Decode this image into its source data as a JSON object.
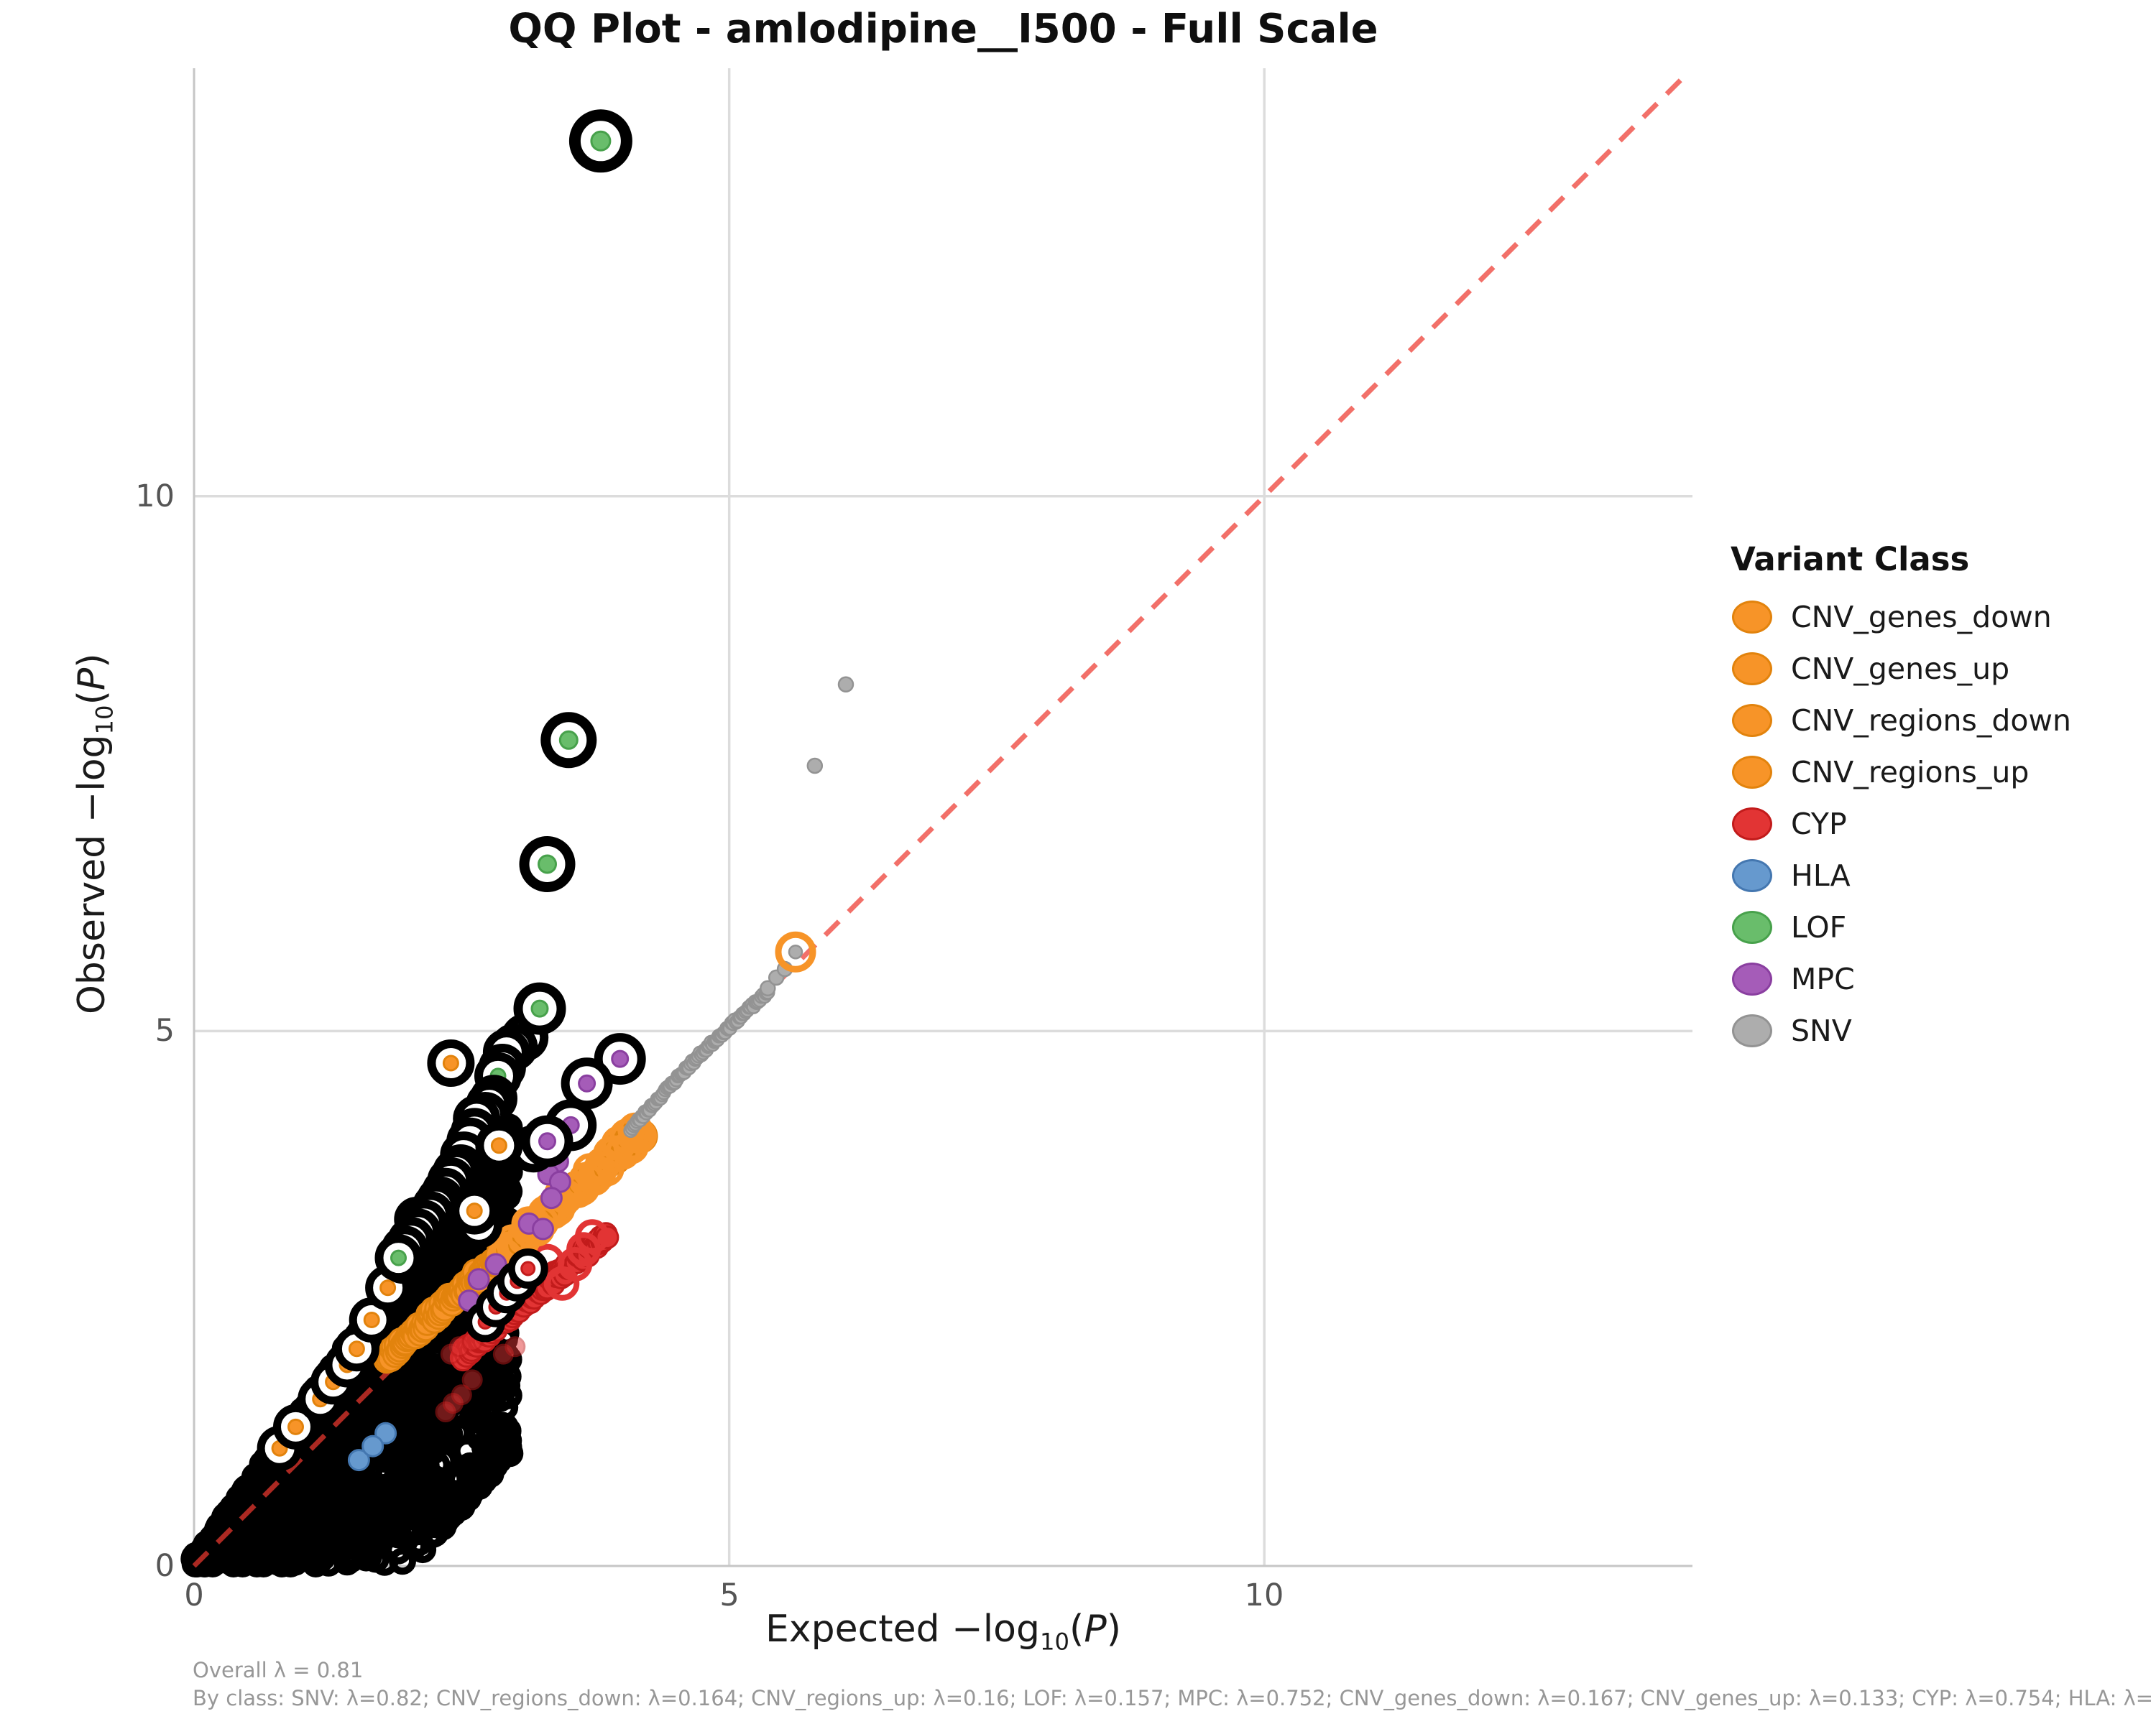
{
  "title": "QQ Plot - amlodipine__I500 - Full Scale",
  "caption": {
    "line1": "Overall λ = 0.81",
    "line2": "By class: SNV: λ=0.82; CNV_regions_down: λ=0.164; CNV_regions_up: λ=0.16; LOF: λ=0.157; MPC: λ=0.752; CNV_genes_down: λ=0.167; CNV_genes_up: λ=0.133; CYP: λ=0.754; HLA: λ="
  },
  "legend": {
    "title": "Variant Class",
    "items": [
      {
        "label": "CNV_genes_down",
        "color": "#F79428",
        "edge": "#E2830D"
      },
      {
        "label": "CNV_genes_up",
        "color": "#F79428",
        "edge": "#E2830D"
      },
      {
        "label": "CNV_regions_down",
        "color": "#F79428",
        "edge": "#E2830D"
      },
      {
        "label": "CNV_regions_up",
        "color": "#F79428",
        "edge": "#E2830D"
      },
      {
        "label": "CYP",
        "color": "#E23434",
        "edge": "#C21B1B"
      },
      {
        "label": "HLA",
        "color": "#6699CE",
        "edge": "#4477B0"
      },
      {
        "label": "LOF",
        "color": "#69BD6B",
        "edge": "#47A14B"
      },
      {
        "label": "MPC",
        "color": "#A55CB8",
        "edge": "#8A3FA0"
      },
      {
        "label": "SNV",
        "color": "#ADADAD",
        "edge": "#939393"
      }
    ]
  },
  "chart_data": {
    "type": "scatter",
    "title": "QQ Plot - amlodipine__I500 - Full Scale",
    "xlabel": {
      "prefix": "Expected ",
      "minus_log": "−log",
      "sub": "10",
      "paren_open": "(",
      "arg": "P",
      "paren_close": ")"
    },
    "ylabel": {
      "prefix": "Observed ",
      "minus_log": "−log",
      "sub": "10",
      "paren_open": "(",
      "arg": "P",
      "paren_close": ")"
    },
    "xlim": [
      0,
      14
    ],
    "ylim": [
      0,
      14
    ],
    "xticks": [
      0,
      5,
      10
    ],
    "yticks": [
      0,
      5,
      10
    ],
    "grid": true,
    "legend_position": "right",
    "style": {
      "grid_color": "#dcdcdc",
      "spine_color": "#c6c6c6",
      "tick_color": "#555555",
      "caption_color": "#979797",
      "ring_color": "#000000",
      "ring_interior": "#ffffff",
      "background": "#ffffff"
    },
    "diagonal": {
      "x1": 0,
      "y1": 0,
      "x2": 13.95,
      "y2": 13.95,
      "color": "#EE3A30",
      "opacity": 0.72,
      "dash": "27 19",
      "width": 7
    },
    "colors": {
      "CNV": {
        "fill": "#F79428",
        "edge": "#E2830D"
      },
      "CYP": {
        "fill": "#E23434",
        "edge": "#C21B1B"
      },
      "HLA": {
        "fill": "#6699CE",
        "edge": "#4477B0"
      },
      "LOF": {
        "fill": "#69BD6B",
        "edge": "#47A14B"
      },
      "MPC": {
        "fill": "#A55CB8",
        "edge": "#8A3FA0"
      },
      "SNV": {
        "fill": "#ADADAD",
        "edge": "#939393"
      }
    },
    "series": {
      "significant_mass": {
        "comment": "dense cloud of black-outlined significant points from origin",
        "n": 1800,
        "seed": 7,
        "x_max": 2.95,
        "x_pow": 0.9,
        "s_max": 1.4,
        "s_pow": 1.9,
        "jitter": 0.06,
        "wedge_x0": 2.0,
        "wedge_slope": 1.1,
        "r": 14,
        "stroke": 10
      },
      "cnv_band": {
        "class": "CNV",
        "n": 175,
        "seed": 11,
        "x0": 1.8,
        "x1": 4.16,
        "slope": 0.89,
        "intercept": 0.35,
        "jitter": 0.06,
        "r": 17
      },
      "cnv_band_open_rings": {
        "class": "CNV",
        "n": 34,
        "seed": 13,
        "x0": 2.9,
        "x1": 4.16,
        "slope": 0.89,
        "intercept": 0.35,
        "jitter": 0.07,
        "r": 21,
        "stroke": 7
      },
      "cnv_end_cluster": {
        "class": "CNV",
        "n": 14,
        "seed": 17,
        "x0": 3.93,
        "x1": 4.17,
        "slope": 0.89,
        "intercept": 0.35,
        "jitter": 0.05,
        "r": 23
      },
      "cyp_band": {
        "class": "CYP",
        "n": 115,
        "seed": 19,
        "x0": 2.5,
        "x1": 3.86,
        "slope": 0.83,
        "intercept": -0.1,
        "jitter": 0.055,
        "r": 15
      },
      "snv_trail": {
        "class": "SNV",
        "n": 88,
        "seed": 23,
        "x0": 4.08,
        "x1": 5.36,
        "bulge": 0.05,
        "jitter": 0.02,
        "r": 9
      },
      "snv_sparse": {
        "class": "SNV",
        "r": 10,
        "points": [
          [
            5.36,
            5.4
          ],
          [
            5.44,
            5.5
          ],
          [
            5.52,
            5.58
          ],
          [
            5.8,
            7.48
          ],
          [
            6.09,
            8.24
          ]
        ]
      },
      "hla_dots": {
        "class": "HLA",
        "r": 14,
        "points": [
          [
            1.79,
            1.24
          ],
          [
            1.54,
            0.99
          ],
          [
            1.67,
            1.12
          ]
        ]
      },
      "mpc_dots": {
        "class": "MPC",
        "r": 14,
        "points": [
          [
            3.4,
            3.78
          ],
          [
            3.31,
            3.66
          ],
          [
            3.42,
            3.59
          ],
          [
            3.34,
            3.44
          ],
          [
            3.13,
            3.2
          ],
          [
            3.26,
            3.15
          ],
          [
            2.82,
            2.82
          ],
          [
            2.66,
            2.68
          ],
          [
            2.57,
            2.48
          ]
        ]
      },
      "cyp_light_dots": {
        "class": "CYP",
        "r": 13,
        "opacity": 0.5,
        "points": [
          [
            2.35,
            1.44
          ],
          [
            2.42,
            1.52
          ],
          [
            2.5,
            1.6
          ],
          [
            2.6,
            1.74
          ],
          [
            2.4,
            1.98
          ],
          [
            2.48,
            2.05
          ],
          [
            2.6,
            2.1
          ],
          [
            2.89,
            1.98
          ],
          [
            3.0,
            2.05
          ]
        ]
      },
      "cyp_open_rings": {
        "class": "CYP",
        "r": 20,
        "stroke": 8,
        "points": [
          [
            3.3,
            2.85
          ],
          [
            3.44,
            2.64
          ],
          [
            3.56,
            2.82
          ],
          [
            3.64,
            2.96
          ],
          [
            3.72,
            3.08
          ]
        ]
      },
      "ringed_lof_outliers": {
        "class": "LOF",
        "points": [
          [
            3.8,
            13.32,
            36,
            13,
            16
          ],
          [
            3.5,
            7.72,
            32,
            12,
            14
          ],
          [
            3.3,
            6.56,
            32,
            12,
            14
          ],
          [
            3.23,
            5.21,
            30,
            11,
            13
          ]
        ]
      },
      "ringed_lof_chain": {
        "class": "LOF",
        "outer_r": 27,
        "inner_r": 10,
        "stroke": 12,
        "points": [
          [
            3.09,
            4.94
          ],
          [
            2.99,
            4.85
          ],
          [
            2.92,
            4.8
          ],
          [
            2.88,
            4.66
          ],
          [
            2.84,
            4.58
          ],
          [
            2.8,
            4.37
          ],
          [
            2.76,
            4.31
          ],
          [
            2.72,
            4.21
          ],
          [
            2.64,
            4.18
          ],
          [
            2.62,
            4.06
          ],
          [
            2.58,
            3.97
          ],
          [
            2.52,
            3.84
          ],
          [
            2.49,
            3.72
          ],
          [
            2.45,
            3.68
          ],
          [
            2.48,
            3.51
          ],
          [
            2.4,
            3.6
          ],
          [
            2.35,
            3.5
          ],
          [
            2.3,
            3.42
          ],
          [
            2.26,
            3.36
          ],
          [
            2.21,
            3.28
          ],
          [
            2.15,
            3.2
          ],
          [
            2.09,
            3.12
          ],
          [
            2.03,
            3.04
          ],
          [
            1.97,
            2.96
          ],
          [
            1.91,
            2.88
          ]
        ]
      },
      "ringed_cnv_left_chain": {
        "class": "CNV",
        "outer_r": 26,
        "inner_r": 10,
        "stroke": 11,
        "points": [
          [
            0.8,
            1.1
          ],
          [
            0.95,
            1.3
          ],
          [
            1.18,
            1.56
          ],
          [
            1.3,
            1.72
          ],
          [
            1.43,
            1.88
          ],
          [
            1.52,
            2.03
          ],
          [
            1.66,
            2.3
          ],
          [
            1.81,
            2.6
          ],
          [
            1.95,
            2.85
          ],
          [
            2.07,
            3.04
          ],
          [
            2.08,
            3.24
          ]
        ]
      },
      "ringed_cnv_scatter": {
        "class": "CNV",
        "outer_r": 27,
        "inner_r": 10,
        "stroke": 12,
        "points": [
          [
            2.4,
            4.7
          ],
          [
            2.88,
            3.88
          ],
          [
            3.17,
            3.9
          ],
          [
            2.85,
            3.93
          ],
          [
            2.68,
            3.36
          ],
          [
            2.66,
            3.19
          ],
          [
            2.62,
            3.32
          ]
        ]
      },
      "ringed_mpc": {
        "class": "MPC",
        "outer_r": 30,
        "inner_r": 11,
        "stroke": 12,
        "points": [
          [
            3.98,
            4.74
          ],
          [
            3.67,
            4.51
          ],
          [
            3.52,
            4.12
          ],
          [
            3.3,
            3.97
          ]
        ]
      },
      "ringed_cyp": {
        "class": "CYP",
        "outer_r": 23,
        "inner_r": 9,
        "stroke": 10,
        "points": [
          [
            2.72,
            2.28
          ],
          [
            2.82,
            2.42
          ],
          [
            2.92,
            2.55
          ],
          [
            3.02,
            2.66
          ],
          [
            3.12,
            2.78
          ]
        ]
      },
      "cnv_ring_on_snv": {
        "ring_class": "CNV",
        "dot_class": "SNV",
        "x": 5.62,
        "y": 5.74,
        "r": 24,
        "stroke": 9,
        "dot_r": 9
      }
    }
  }
}
